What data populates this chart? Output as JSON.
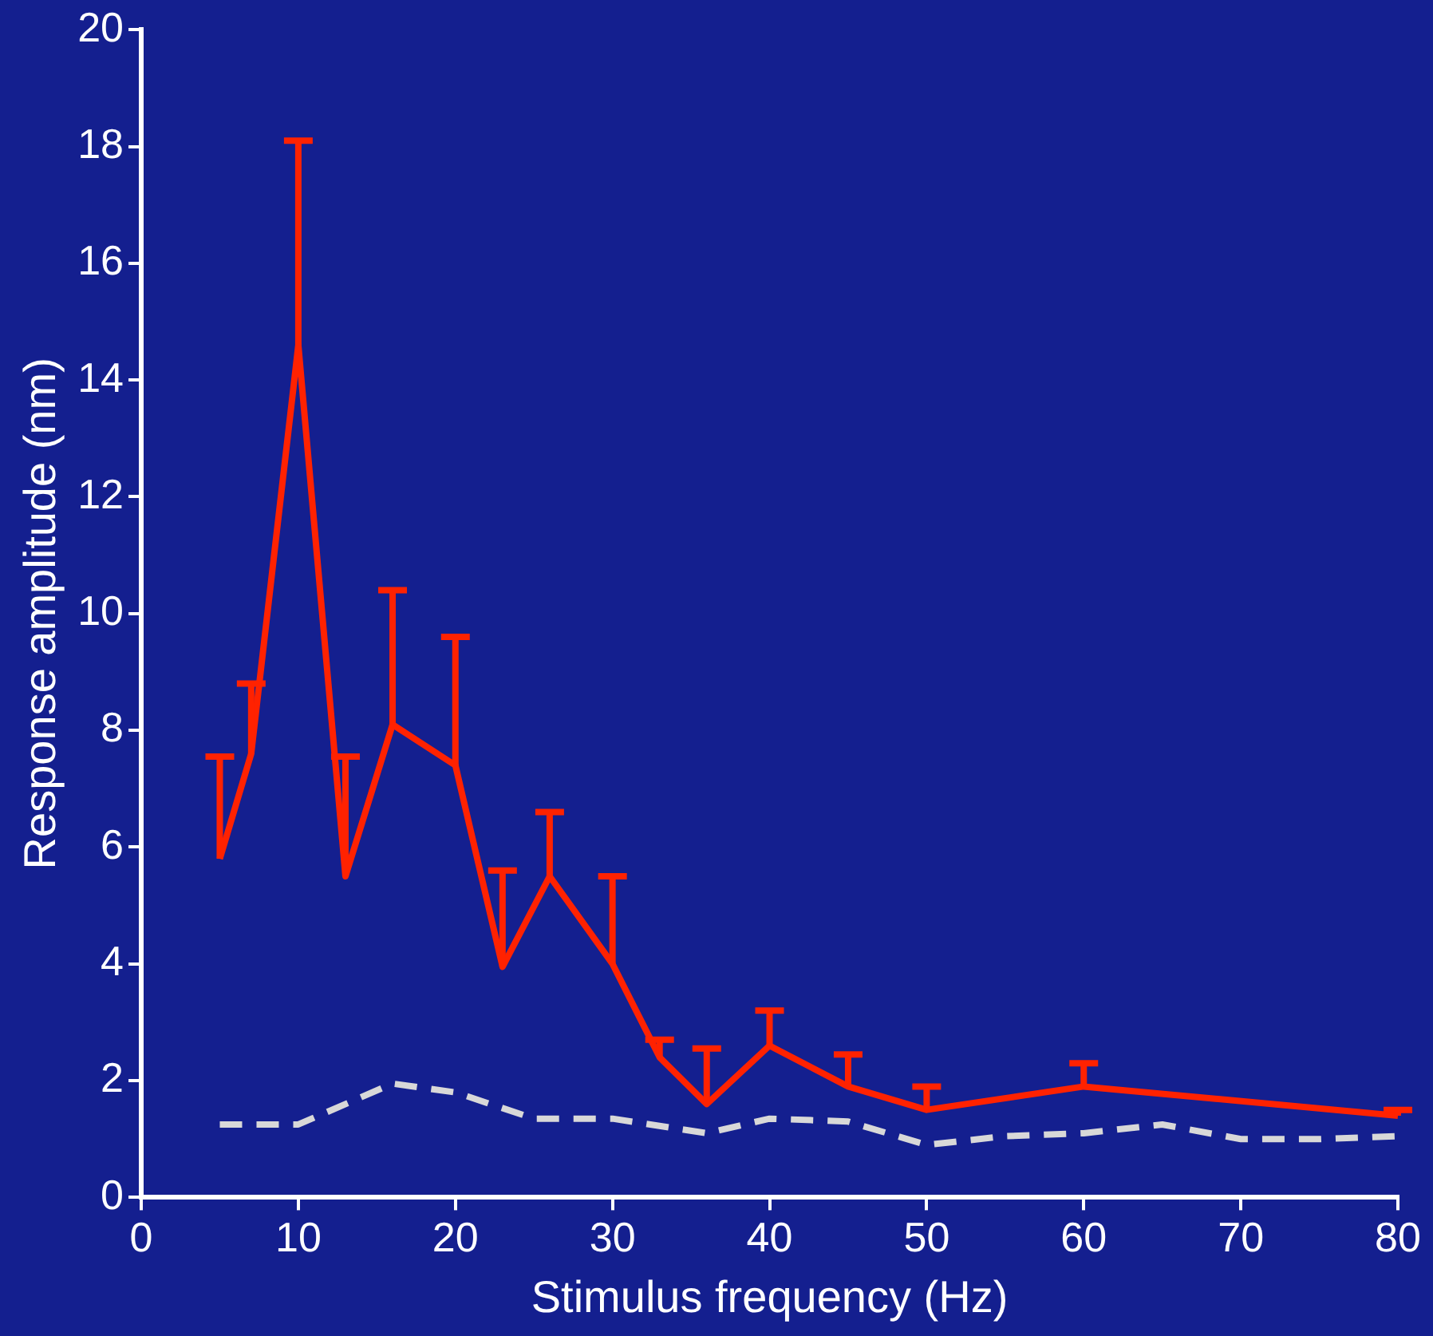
{
  "chart_data": {
    "type": "line",
    "xlabel": "Stimulus frequency (Hz)",
    "ylabel": "Response amplitude (nm)",
    "xlim": [
      0,
      80
    ],
    "xticks": [
      0,
      10,
      20,
      30,
      40,
      50,
      60,
      70,
      80
    ],
    "ylim": [
      0,
      20
    ],
    "yticks": [
      0,
      2,
      4,
      6,
      8,
      10,
      12,
      14,
      16,
      18,
      20
    ],
    "grid": false,
    "legend": false,
    "marker": "none",
    "series": [
      {
        "color": "#ff2200",
        "line_style": "solid",
        "x": [
          5,
          7,
          10,
          13,
          16,
          20,
          23,
          26,
          30,
          33,
          36,
          40,
          45,
          50,
          60,
          80
        ],
        "values": [
          5.8,
          7.6,
          14.6,
          5.5,
          8.1,
          7.4,
          3.95,
          5.5,
          4.0,
          2.4,
          1.6,
          2.6,
          1.9,
          1.5,
          1.9,
          1.4
        ],
        "errors": [
          [
            5.8,
            7.55
          ],
          [
            7.6,
            8.8
          ],
          [
            14.6,
            18.1
          ],
          [
            5.5,
            7.55
          ],
          [
            8.1,
            10.4
          ],
          [
            7.4,
            9.6
          ],
          [
            3.95,
            5.6
          ],
          [
            5.5,
            6.6
          ],
          [
            4.0,
            5.5
          ],
          [
            2.4,
            2.7
          ],
          [
            1.6,
            2.55
          ],
          [
            2.6,
            3.2
          ],
          [
            1.9,
            2.45
          ],
          [
            1.5,
            1.9
          ],
          [
            1.9,
            2.3
          ],
          [
            1.4,
            1.5
          ]
        ]
      },
      {
        "color": "#d8d8d8",
        "line_style": "dashed",
        "x": [
          5,
          10,
          16,
          20,
          25,
          30,
          36,
          40,
          45,
          50,
          55,
          60,
          65,
          70,
          75,
          80
        ],
        "values": [
          1.25,
          1.25,
          1.95,
          1.8,
          1.35,
          1.35,
          1.1,
          1.35,
          1.3,
          0.9,
          1.05,
          1.1,
          1.25,
          1.0,
          1.0,
          1.05
        ]
      }
    ]
  }
}
